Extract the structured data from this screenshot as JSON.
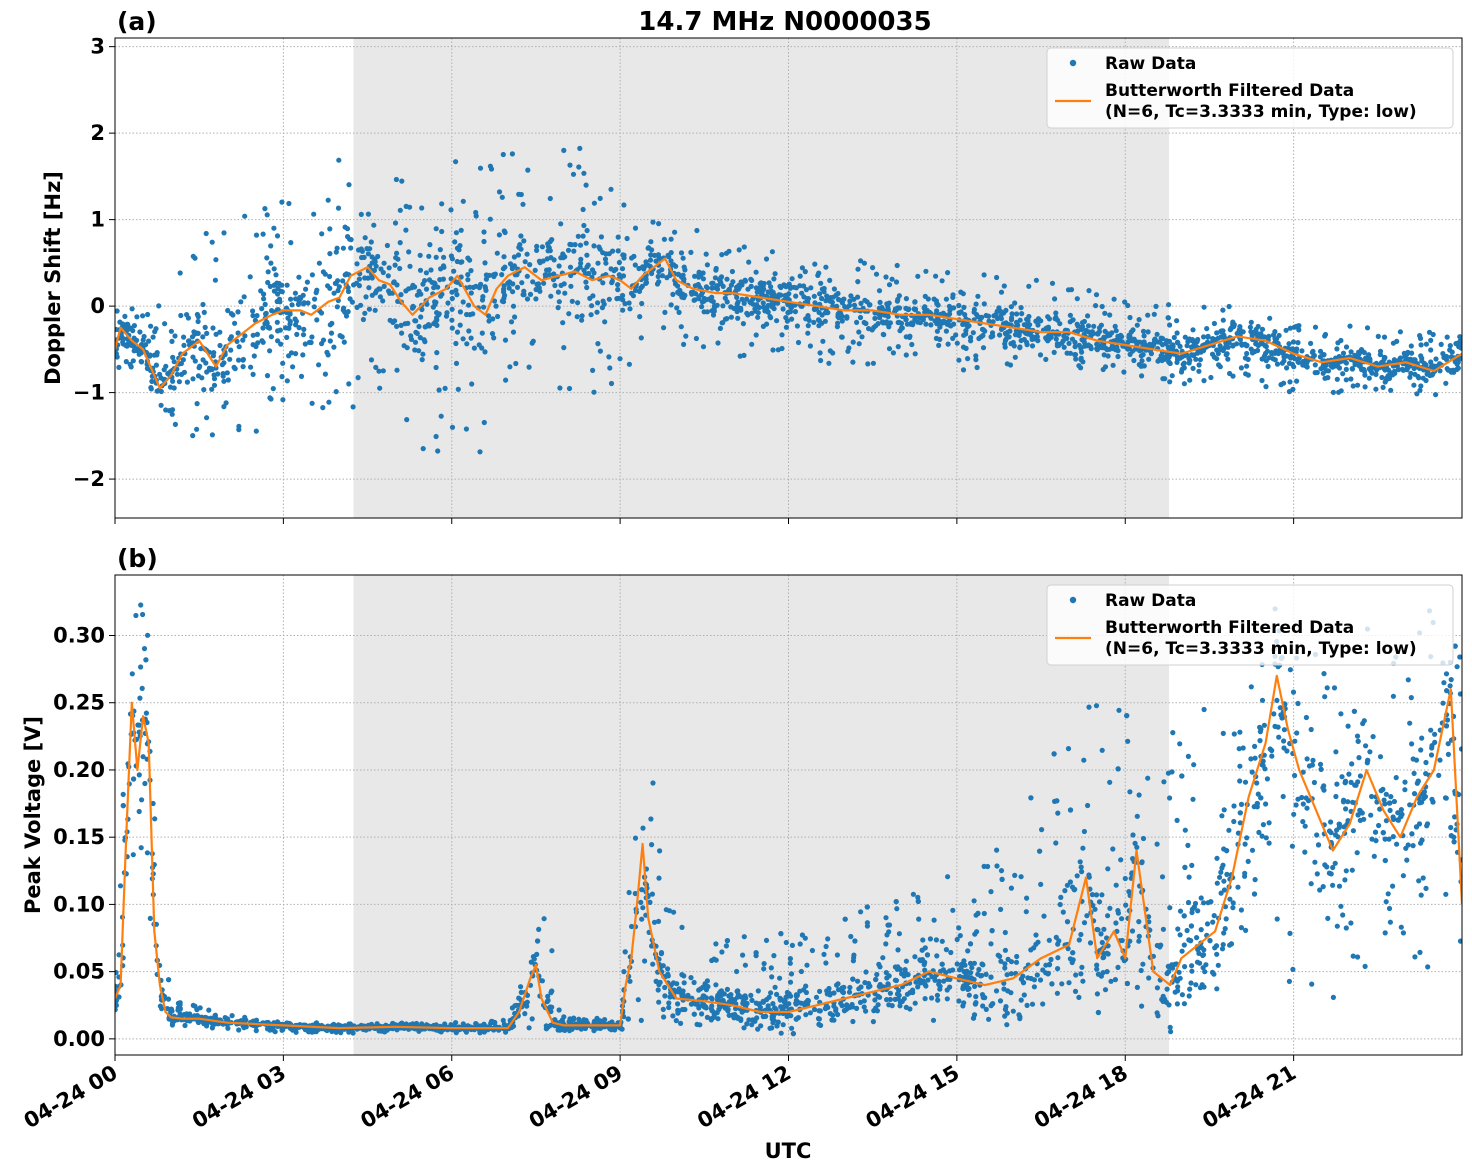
{
  "chart_data": {
    "type": "scatter",
    "title": "14.7 MHz N0000035",
    "xlabel": "UTC",
    "x_unit": "hours since 04-24 00 UTC",
    "xlim": [
      0,
      24
    ],
    "x_ticks": [
      0,
      3,
      6,
      9,
      12,
      15,
      18,
      21
    ],
    "x_tick_labels": [
      "04-24 00",
      "04-24 03",
      "04-24 06",
      "04-24 09",
      "04-24 12",
      "04-24 15",
      "04-24 18",
      "04-24 21"
    ],
    "shaded_interval_hours": [
      4.25,
      18.78
    ],
    "grid": true,
    "legend": {
      "placement": "top-right",
      "raw_label": "Raw Data",
      "filtered_label_line1": "Butterworth Filtered Data",
      "filtered_label_line2": "(N=6, Tc=3.3333 min, Type: low)"
    },
    "colors": {
      "raw": "#1f77b4",
      "filtered": "#ff7f0e",
      "shade": "#e8e8e8",
      "grid": "#b0b0b0"
    },
    "panels": [
      {
        "panel_label": "(a)",
        "ylabel": "Doppler Shift [Hz]",
        "ylim": [
          -2.45,
          3.1
        ],
        "y_ticks": [
          -2,
          -1,
          0,
          1,
          2,
          3
        ],
        "y_tick_labels": [
          "−2",
          "−1",
          "0",
          "1",
          "2",
          "3"
        ],
        "series": [
          {
            "name": "Butterworth Filtered Data",
            "kind": "line",
            "x": [
              0,
              0.1,
              0.3,
              0.5,
              0.8,
              1.0,
              1.2,
              1.5,
              1.8,
              2.0,
              2.3,
              2.5,
              2.8,
              3.0,
              3.3,
              3.5,
              3.8,
              4.0,
              4.2,
              4.5,
              4.7,
              4.9,
              5.1,
              5.3,
              5.6,
              5.9,
              6.1,
              6.4,
              6.6,
              6.8,
              7.0,
              7.3,
              7.6,
              7.9,
              8.2,
              8.5,
              8.8,
              9.0,
              9.2,
              9.4,
              9.6,
              9.8,
              10.0,
              10.3,
              10.7,
              11.0,
              11.5,
              12.0,
              12.5,
              13.0,
              13.5,
              14.0,
              14.5,
              15.0,
              15.5,
              16.0,
              16.5,
              17.0,
              17.5,
              18.0,
              18.5,
              19.0,
              19.5,
              20.0,
              20.5,
              21.0,
              21.5,
              22.0,
              22.5,
              23.0,
              23.5,
              24.0
            ],
            "y": [
              -0.5,
              -0.25,
              -0.4,
              -0.5,
              -0.95,
              -0.8,
              -0.55,
              -0.4,
              -0.7,
              -0.45,
              -0.3,
              -0.2,
              -0.1,
              -0.05,
              -0.05,
              -0.1,
              0.05,
              0.1,
              0.35,
              0.45,
              0.3,
              0.25,
              0.05,
              -0.1,
              0.1,
              0.2,
              0.35,
              0.0,
              -0.1,
              0.2,
              0.35,
              0.45,
              0.3,
              0.35,
              0.4,
              0.3,
              0.35,
              0.3,
              0.2,
              0.35,
              0.45,
              0.55,
              0.3,
              0.2,
              0.15,
              0.15,
              0.1,
              0.05,
              0.0,
              -0.05,
              -0.05,
              -0.1,
              -0.1,
              -0.15,
              -0.2,
              -0.25,
              -0.3,
              -0.3,
              -0.4,
              -0.45,
              -0.5,
              -0.55,
              -0.45,
              -0.35,
              -0.4,
              -0.55,
              -0.65,
              -0.6,
              -0.7,
              -0.65,
              -0.75,
              -0.55
            ]
          },
          {
            "name": "Raw Data",
            "kind": "scatter-band",
            "x": [
              0,
              0.5,
              1.0,
              1.5,
              2.0,
              2.5,
              3.0,
              3.5,
              4.0,
              4.5,
              5.0,
              5.5,
              6.0,
              6.5,
              7.0,
              7.5,
              8.0,
              8.5,
              9.0,
              9.5,
              10.0,
              11.0,
              12.0,
              13.0,
              14.0,
              15.0,
              16.0,
              17.0,
              18.0,
              19.0,
              20.0,
              21.0,
              22.0,
              23.0,
              24.0
            ],
            "y_low": [
              -0.8,
              -0.8,
              -1.5,
              -1.6,
              -1.6,
              -1.5,
              -1.3,
              -1.3,
              -1.3,
              -1.1,
              -1.5,
              -1.7,
              -1.7,
              -1.7,
              -0.8,
              -0.7,
              -1.0,
              -1.0,
              -1.3,
              -0.1,
              -0.5,
              -0.6,
              -0.6,
              -0.7,
              -0.7,
              -0.8,
              -0.7,
              -0.75,
              -0.8,
              -0.9,
              -0.9,
              -1.0,
              -1.0,
              -1.0,
              -1.1
            ],
            "y_high": [
              0.1,
              -0.1,
              0.2,
              0.8,
              1.0,
              1.1,
              1.3,
              1.6,
              1.7,
              1.9,
              1.6,
              1.5,
              1.7,
              1.7,
              1.8,
              1.8,
              1.9,
              2.0,
              1.6,
              1.0,
              1.0,
              0.8,
              0.6,
              0.6,
              0.5,
              0.4,
              0.35,
              0.25,
              0.1,
              0.0,
              0.0,
              -0.1,
              -0.2,
              -0.3,
              -0.3
            ]
          }
        ]
      },
      {
        "panel_label": "(b)",
        "ylabel": "Peak Voltage [V]",
        "ylim": [
          -0.012,
          0.345
        ],
        "y_ticks": [
          0.0,
          0.05,
          0.1,
          0.15,
          0.2,
          0.25,
          0.3
        ],
        "y_tick_labels": [
          "0.00",
          "0.05",
          "0.10",
          "0.15",
          "0.20",
          "0.25",
          "0.30"
        ],
        "series": [
          {
            "name": "Butterworth Filtered Data",
            "kind": "line",
            "x": [
              0,
              0.1,
              0.2,
              0.3,
              0.4,
              0.5,
              0.6,
              0.7,
              0.8,
              0.9,
              1.0,
              1.2,
              1.5,
              2.0,
              3.0,
              4.0,
              5.0,
              6.0,
              7.0,
              7.2,
              7.4,
              7.5,
              7.6,
              7.8,
              8.0,
              8.5,
              9.0,
              9.1,
              9.2,
              9.3,
              9.4,
              9.5,
              9.7,
              10.0,
              10.5,
              11.0,
              11.5,
              12.0,
              12.5,
              13.0,
              13.5,
              14.0,
              14.5,
              15.0,
              15.5,
              16.0,
              16.5,
              17.0,
              17.3,
              17.5,
              17.8,
              18.0,
              18.2,
              18.5,
              18.8,
              19.0,
              19.3,
              19.6,
              19.9,
              20.2,
              20.5,
              20.7,
              20.9,
              21.1,
              21.4,
              21.7,
              22.0,
              22.3,
              22.6,
              22.9,
              23.2,
              23.5,
              23.8,
              24.0
            ],
            "y": [
              0.03,
              0.04,
              0.15,
              0.25,
              0.2,
              0.24,
              0.22,
              0.08,
              0.04,
              0.02,
              0.016,
              0.015,
              0.015,
              0.012,
              0.01,
              0.008,
              0.009,
              0.008,
              0.008,
              0.02,
              0.045,
              0.055,
              0.03,
              0.012,
              0.01,
              0.01,
              0.01,
              0.04,
              0.06,
              0.1,
              0.145,
              0.09,
              0.05,
              0.03,
              0.028,
              0.025,
              0.02,
              0.02,
              0.025,
              0.03,
              0.035,
              0.04,
              0.05,
              0.045,
              0.04,
              0.045,
              0.06,
              0.07,
              0.12,
              0.06,
              0.08,
              0.06,
              0.14,
              0.05,
              0.04,
              0.06,
              0.07,
              0.08,
              0.12,
              0.18,
              0.22,
              0.27,
              0.23,
              0.2,
              0.17,
              0.14,
              0.16,
              0.2,
              0.17,
              0.15,
              0.18,
              0.2,
              0.26,
              0.1
            ]
          },
          {
            "name": "Raw Data",
            "kind": "scatter-band",
            "x": [
              0,
              0.2,
              0.4,
              0.6,
              0.8,
              1.0,
              1.5,
              2.0,
              3.0,
              4.0,
              5.0,
              6.0,
              7.0,
              7.4,
              7.6,
              8.0,
              9.0,
              9.4,
              9.8,
              10.5,
              11.5,
              12.5,
              13.5,
              14.5,
              15.5,
              16.5,
              17.5,
              18.5,
              19.5,
              20.5,
              21.5,
              22.5,
              23.5,
              24.0
            ],
            "y_low": [
              0.012,
              0.08,
              0.09,
              0.09,
              0.02,
              0.008,
              0.008,
              0.007,
              0.005,
              0.004,
              0.005,
              0.004,
              0.005,
              0.008,
              0.008,
              0.006,
              0.006,
              0.01,
              0.01,
              0.008,
              0.006,
              0.008,
              0.01,
              0.012,
              0.012,
              0.015,
              0.015,
              0.02,
              0.03,
              0.05,
              0.03,
              0.03,
              0.05,
              0.04
            ],
            "y_high": [
              0.05,
              0.3,
              0.33,
              0.31,
              0.12,
              0.028,
              0.025,
              0.018,
              0.012,
              0.012,
              0.012,
              0.012,
              0.014,
              0.06,
              0.11,
              0.016,
              0.015,
              0.26,
              0.12,
              0.08,
              0.08,
              0.09,
              0.1,
              0.12,
              0.13,
              0.2,
              0.26,
              0.23,
              0.25,
              0.33,
              0.32,
              0.31,
              0.32,
              0.3
            ]
          }
        ]
      }
    ]
  }
}
